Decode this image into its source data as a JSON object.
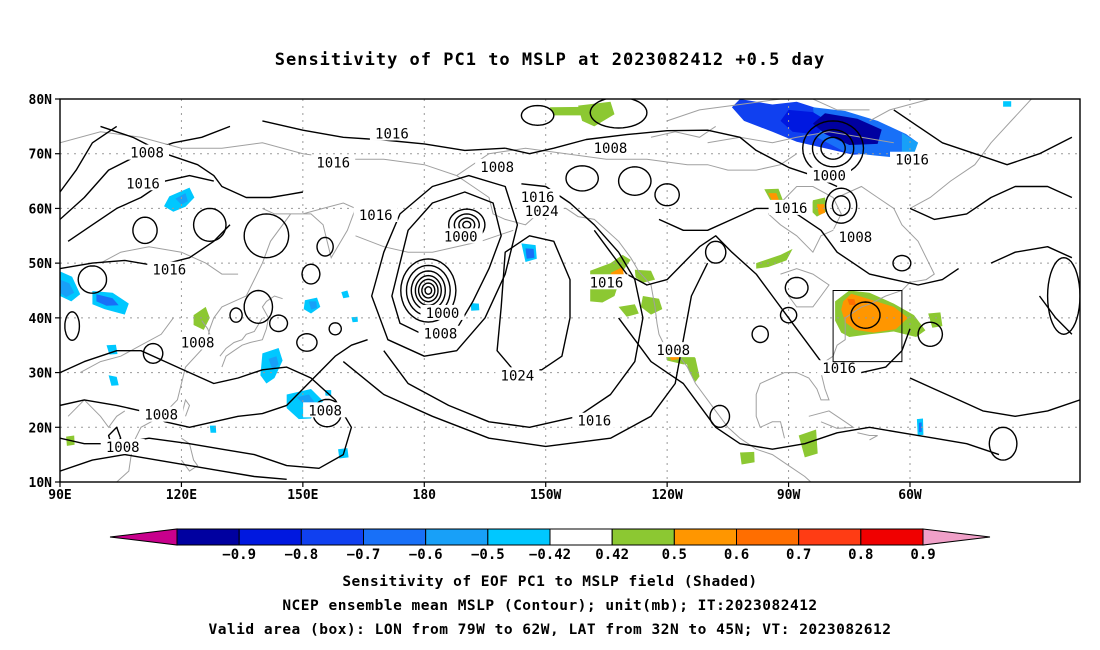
{
  "title": "Sensitivity of PC1 to MSLP at 2023082412 +0.5 day",
  "map": {
    "lat_labels": [
      "80N",
      "70N",
      "60N",
      "50N",
      "40N",
      "30N",
      "20N",
      "10N"
    ],
    "lon_labels": [
      "90E",
      "120E",
      "150E",
      "180",
      "150W",
      "120W",
      "90W",
      "60W"
    ],
    "grid_style": "dotted",
    "contour_color": "#000000",
    "coast_color": "#a0a0a0"
  },
  "contour_labels": [
    {
      "text": "1016",
      "lon": 172,
      "lat": 73.7
    },
    {
      "text": "1008",
      "lon": 111.5,
      "lat": 70.2
    },
    {
      "text": "1016",
      "lon": 110.5,
      "lat": 64.6
    },
    {
      "text": "1016",
      "lon": 157.5,
      "lat": 68.4
    },
    {
      "text": "1016",
      "lon": 168,
      "lat": 58.8
    },
    {
      "text": "1008",
      "lon": 198,
      "lat": 67.6
    },
    {
      "text": "1016",
      "lon": 208,
      "lat": 62.1
    },
    {
      "text": "1024",
      "lon": 209,
      "lat": 59.5
    },
    {
      "text": "1000",
      "lon": 189,
      "lat": 54.9
    },
    {
      "text": "1016",
      "lon": 117,
      "lat": 48.8
    },
    {
      "text": "1008",
      "lon": 124,
      "lat": 35.5
    },
    {
      "text": "1000",
      "lon": 184.5,
      "lat": 40.9
    },
    {
      "text": "1008",
      "lon": 184,
      "lat": 37.1
    },
    {
      "text": "1024",
      "lon": 203,
      "lat": 29.5
    },
    {
      "text": "1016",
      "lon": 225,
      "lat": 46.5
    },
    {
      "text": "1008",
      "lon": 241.5,
      "lat": 34.1
    },
    {
      "text": "1008",
      "lon": 155.5,
      "lat": 23.1
    },
    {
      "text": "1008",
      "lon": 115,
      "lat": 22.3
    },
    {
      "text": "1008",
      "lon": 105.5,
      "lat": 16.4
    },
    {
      "text": "1016",
      "lon": 222,
      "lat": 21.2
    },
    {
      "text": "1008",
      "lon": 226,
      "lat": 71
    },
    {
      "text": "1000",
      "lon": 280,
      "lat": 66
    },
    {
      "text": "1016",
      "lon": 270.5,
      "lat": 60.1
    },
    {
      "text": "1008",
      "lon": 286.5,
      "lat": 54.8
    },
    {
      "text": "1016",
      "lon": 300.5,
      "lat": 68.9
    },
    {
      "text": "1016",
      "lon": 282.5,
      "lat": 30.8
    }
  ],
  "valid_box": {
    "lon_min": 281,
    "lon_max": 298,
    "lat_min": 32,
    "lat_max": 45
  },
  "colorbar": {
    "labels": [
      "-0.9",
      "-0.8",
      "-0.7",
      "-0.6",
      "-0.5",
      "-0.42",
      "0.42",
      "0.5",
      "0.6",
      "0.7",
      "0.8",
      "0.9"
    ],
    "colors": [
      "#c8008c",
      "#0000a0",
      "#0018e0",
      "#1040f0",
      "#1870f8",
      "#18a0f8",
      "#00c8ff",
      "#ffffff",
      "#8cc832",
      "#ff9600",
      "#ff6e00",
      "#ff3c14",
      "#f00000",
      "#f0a0c8"
    ]
  },
  "footer": {
    "line1": "Sensitivity of EOF PC1 to MSLP field (Shaded)",
    "line2": "NCEP ensemble mean MSLP (Contour); unit(mb); IT:2023082412",
    "line3": "Valid area (box): LON from 79W to 62W, LAT from 32N to 45N; VT: 2023082612"
  }
}
